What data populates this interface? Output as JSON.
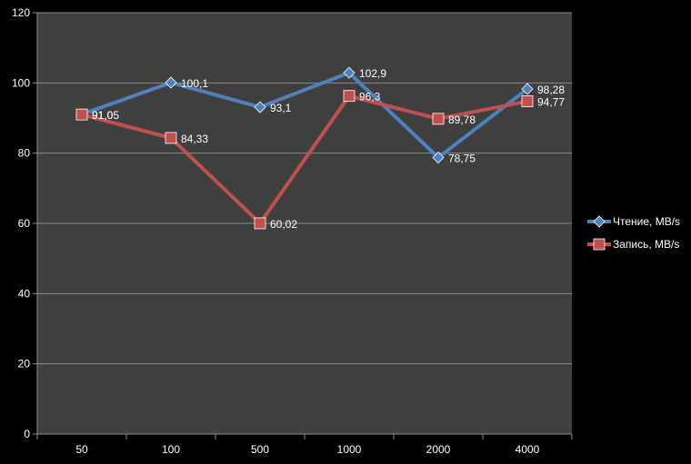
{
  "chart_data": {
    "type": "line",
    "categories": [
      "50",
      "100",
      "500",
      "1000",
      "2000",
      "4000"
    ],
    "series": [
      {
        "name": "Чтение, MB/s",
        "values": [
          91.05,
          100.1,
          93.1,
          102.9,
          78.75,
          98.28
        ],
        "labels": [
          "91,05",
          "100,1",
          "93,1",
          "102,9",
          "78,75",
          "98,28"
        ],
        "color": "#4f81bd",
        "marker": "diamond"
      },
      {
        "name": "Запись, MB/s",
        "values": [
          91.0,
          84.33,
          60.02,
          96.3,
          89.78,
          94.77
        ],
        "labels": [
          "91,0",
          "84,33",
          "60,02",
          "96,3",
          "89,78",
          "94,77"
        ],
        "color": "#c0504d",
        "marker": "square"
      }
    ],
    "yticks": [
      "0",
      "20",
      "40",
      "60",
      "80",
      "100",
      "120"
    ],
    "ylim": [
      0,
      120
    ],
    "title": "",
    "xlabel": "",
    "ylabel": "",
    "grid": true,
    "legend_position": "right",
    "plot_background": "#3f3f3f",
    "page_background": "#000000"
  }
}
